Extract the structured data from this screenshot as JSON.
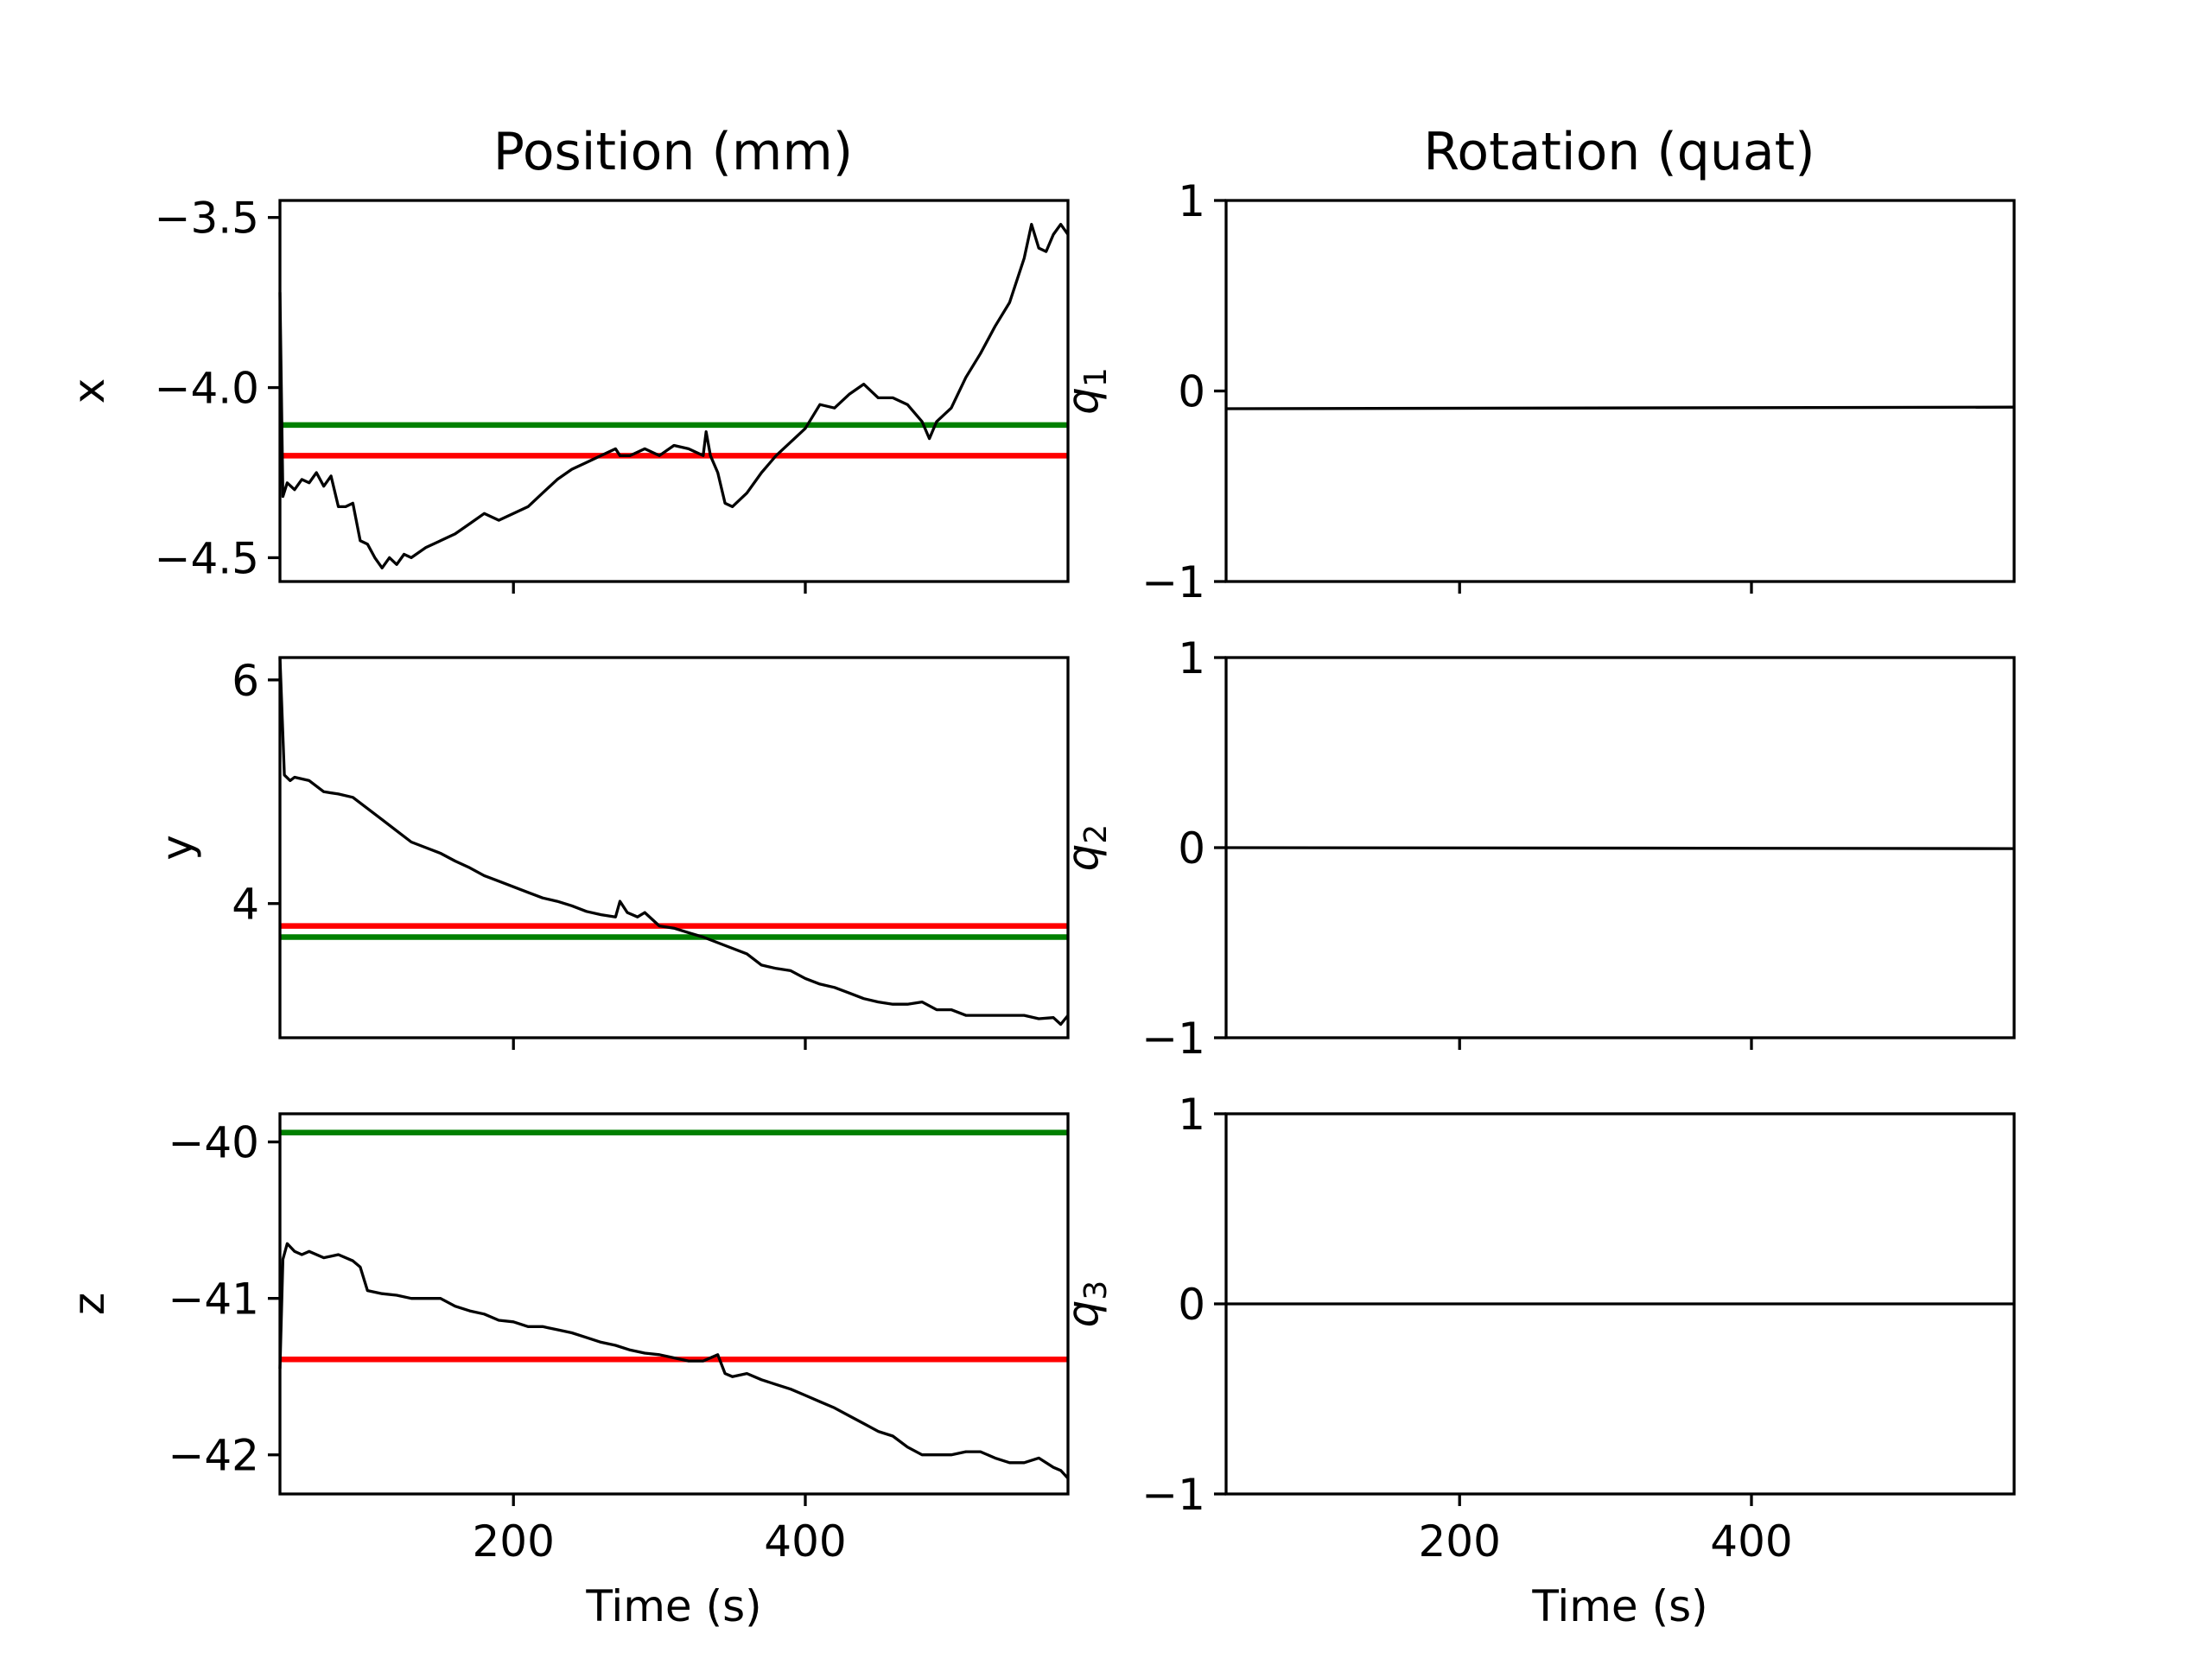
{
  "titles": {
    "position": "Position (mm)",
    "rotation": "Rotation (quat)"
  },
  "colors": {
    "trace": "#000000",
    "green_ref": "#008000",
    "red_ref": "#ff0000"
  },
  "chart_data": [
    {
      "type": "line",
      "title": "Position (mm)",
      "ylabel": "x",
      "xlim": [
        40,
        580
      ],
      "ylim": [
        -4.57,
        -3.45
      ],
      "xticks": [
        200,
        400
      ],
      "yticks": [
        -4.5,
        -4.0,
        -3.5
      ],
      "ytick_labels": [
        "−4.5",
        "−4.0",
        "−3.5"
      ],
      "reference_lines": [
        {
          "color": "green",
          "y": -4.11
        },
        {
          "color": "red",
          "y": -4.2
        }
      ],
      "x": [
        40,
        42,
        45,
        50,
        55,
        60,
        65,
        70,
        75,
        80,
        85,
        90,
        95,
        100,
        105,
        110,
        115,
        120,
        125,
        130,
        140,
        150,
        160,
        170,
        180,
        190,
        200,
        210,
        220,
        230,
        240,
        250,
        260,
        270,
        273,
        280,
        290,
        300,
        310,
        320,
        330,
        332,
        335,
        340,
        345,
        350,
        360,
        370,
        380,
        390,
        400,
        410,
        420,
        430,
        440,
        450,
        460,
        470,
        480,
        485,
        490,
        500,
        510,
        520,
        530,
        540,
        550,
        555,
        560,
        565,
        570,
        575,
        580
      ],
      "y": [
        -3.72,
        -4.32,
        -4.28,
        -4.3,
        -4.27,
        -4.28,
        -4.25,
        -4.29,
        -4.26,
        -4.35,
        -4.35,
        -4.34,
        -4.45,
        -4.46,
        -4.5,
        -4.53,
        -4.5,
        -4.52,
        -4.49,
        -4.5,
        -4.47,
        -4.45,
        -4.43,
        -4.4,
        -4.37,
        -4.39,
        -4.37,
        -4.35,
        -4.31,
        -4.27,
        -4.24,
        -4.22,
        -4.2,
        -4.18,
        -4.2,
        -4.2,
        -4.18,
        -4.2,
        -4.17,
        -4.18,
        -4.2,
        -4.13,
        -4.2,
        -4.25,
        -4.34,
        -4.35,
        -4.31,
        -4.25,
        -4.2,
        -4.16,
        -4.12,
        -4.05,
        -4.06,
        -4.02,
        -3.99,
        -4.03,
        -4.03,
        -4.05,
        -4.1,
        -4.15,
        -4.1,
        -4.06,
        -3.97,
        -3.9,
        -3.82,
        -3.75,
        -3.62,
        -3.52,
        -3.59,
        -3.6,
        -3.55,
        -3.52,
        -3.55
      ]
    },
    {
      "type": "line",
      "title": "",
      "ylabel": "y",
      "xlim": [
        40,
        580
      ],
      "ylim": [
        2.8,
        6.2
      ],
      "xticks": [
        200,
        400
      ],
      "yticks": [
        4,
        6
      ],
      "ytick_labels": [
        "4",
        "6"
      ],
      "reference_lines": [
        {
          "color": "red",
          "y": 3.8
        },
        {
          "color": "green",
          "y": 3.7
        }
      ],
      "x": [
        40,
        43,
        47,
        50,
        60,
        70,
        80,
        90,
        100,
        110,
        120,
        130,
        140,
        150,
        160,
        170,
        180,
        190,
        200,
        210,
        220,
        230,
        240,
        250,
        260,
        270,
        273,
        278,
        285,
        290,
        300,
        310,
        320,
        330,
        340,
        350,
        360,
        370,
        380,
        390,
        400,
        410,
        420,
        430,
        440,
        450,
        460,
        470,
        480,
        490,
        500,
        510,
        520,
        530,
        540,
        550,
        560,
        570,
        575,
        580
      ],
      "y": [
        6.2,
        5.15,
        5.1,
        5.13,
        5.1,
        5.0,
        4.98,
        4.95,
        4.85,
        4.75,
        4.65,
        4.55,
        4.5,
        4.45,
        4.38,
        4.32,
        4.25,
        4.2,
        4.15,
        4.1,
        4.05,
        4.02,
        3.98,
        3.93,
        3.9,
        3.88,
        4.02,
        3.92,
        3.88,
        3.92,
        3.8,
        3.78,
        3.74,
        3.7,
        3.65,
        3.6,
        3.55,
        3.45,
        3.42,
        3.4,
        3.33,
        3.28,
        3.25,
        3.2,
        3.15,
        3.12,
        3.1,
        3.1,
        3.12,
        3.05,
        3.05,
        3.0,
        3.0,
        3.0,
        3.0,
        3.0,
        2.97,
        2.98,
        2.92,
        3.0
      ]
    },
    {
      "type": "line",
      "title": "",
      "ylabel": "z",
      "xlim": [
        40,
        580
      ],
      "ylim": [
        -42.25,
        -39.82
      ],
      "xticks": [
        200,
        400
      ],
      "xtick_labels": [
        "200",
        "400"
      ],
      "xlabel": "Time (s)",
      "yticks": [
        -42,
        -41,
        -40
      ],
      "ytick_labels": [
        "−42",
        "−41",
        "−40"
      ],
      "reference_lines": [
        {
          "color": "green",
          "y": -39.94
        },
        {
          "color": "red",
          "y": -41.39
        }
      ],
      "x": [
        40,
        42,
        45,
        50,
        55,
        60,
        70,
        80,
        90,
        95,
        100,
        110,
        120,
        130,
        140,
        150,
        160,
        170,
        180,
        190,
        200,
        210,
        220,
        230,
        240,
        250,
        260,
        270,
        280,
        290,
        300,
        310,
        320,
        330,
        340,
        345,
        350,
        360,
        370,
        380,
        390,
        400,
        410,
        420,
        430,
        440,
        450,
        460,
        470,
        480,
        490,
        500,
        510,
        520,
        530,
        540,
        550,
        560,
        570,
        575,
        580
      ],
      "y": [
        -41.45,
        -40.75,
        -40.65,
        -40.7,
        -40.72,
        -40.7,
        -40.74,
        -40.72,
        -40.76,
        -40.8,
        -40.95,
        -40.97,
        -40.98,
        -41.0,
        -41.0,
        -41.0,
        -41.05,
        -41.08,
        -41.1,
        -41.14,
        -41.15,
        -41.18,
        -41.18,
        -41.2,
        -41.22,
        -41.25,
        -41.28,
        -41.3,
        -41.33,
        -41.35,
        -41.36,
        -41.38,
        -41.4,
        -41.4,
        -41.36,
        -41.48,
        -41.5,
        -41.48,
        -41.52,
        -41.55,
        -41.58,
        -41.62,
        -41.66,
        -41.7,
        -41.75,
        -41.8,
        -41.85,
        -41.88,
        -41.95,
        -42.0,
        -42.0,
        -42.0,
        -41.98,
        -41.98,
        -42.02,
        -42.05,
        -42.05,
        -42.02,
        -42.08,
        -42.1,
        -42.15
      ]
    },
    {
      "type": "line",
      "title": "Rotation (quat)",
      "ylabel": "q1",
      "xlim": [
        40,
        580
      ],
      "ylim": [
        -1,
        1
      ],
      "xticks": [
        200,
        400
      ],
      "yticks": [
        -1,
        0,
        1
      ],
      "ytick_labels": [
        "−1",
        "0",
        "1"
      ],
      "x": [
        40,
        580
      ],
      "y": [
        -0.093,
        -0.085
      ]
    },
    {
      "type": "line",
      "title": "",
      "ylabel": "q2",
      "xlim": [
        40,
        580
      ],
      "ylim": [
        -1,
        1
      ],
      "xticks": [
        200,
        400
      ],
      "yticks": [
        -1,
        0,
        1
      ],
      "ytick_labels": [
        "−1",
        "0",
        "1"
      ],
      "x": [
        40,
        580
      ],
      "y": [
        0.0,
        -0.005
      ]
    },
    {
      "type": "line",
      "title": "",
      "ylabel": "q3",
      "xlim": [
        40,
        580
      ],
      "ylim": [
        -1,
        1
      ],
      "xticks": [
        200,
        400
      ],
      "xtick_labels": [
        "200",
        "400"
      ],
      "xlabel": "Time (s)",
      "yticks": [
        -1,
        0,
        1
      ],
      "ytick_labels": [
        "−1",
        "0",
        "1"
      ],
      "x": [
        40,
        580
      ],
      "y": [
        0.0,
        0.0
      ]
    }
  ]
}
